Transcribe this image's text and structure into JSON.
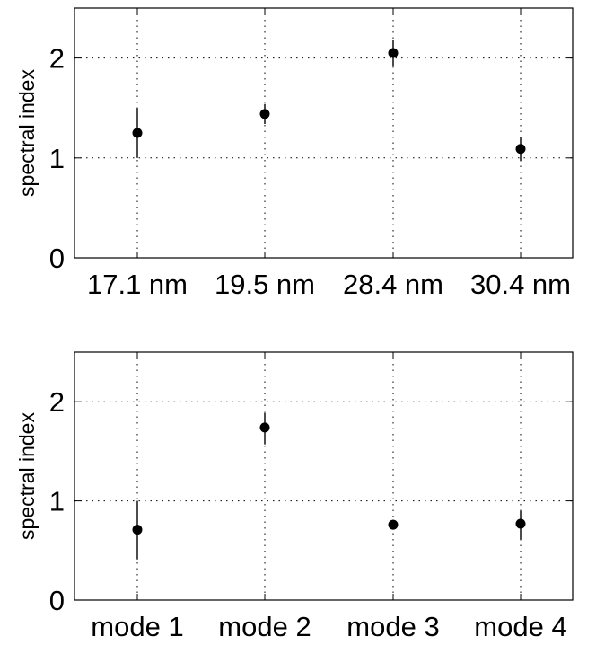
{
  "chart_data": [
    {
      "type": "scatter",
      "categories": [
        "17.1 nm",
        "19.5 nm",
        "28.4 nm",
        "30.4 nm"
      ],
      "values": [
        1.25,
        1.44,
        2.05,
        1.09
      ],
      "error_low": [
        1.0,
        1.34,
        1.92,
        0.97
      ],
      "error_high": [
        1.5,
        1.54,
        2.18,
        1.21
      ],
      "title": "",
      "xlabel": "",
      "ylabel": "spectral index",
      "ylim": [
        0,
        2.5
      ],
      "yticks": [
        0,
        1,
        2
      ],
      "grid": true,
      "marker_color": "#000000"
    },
    {
      "type": "scatter",
      "categories": [
        "mode 1",
        "mode 2",
        "mode 3",
        "mode 4"
      ],
      "values": [
        0.71,
        1.74,
        0.76,
        0.77
      ],
      "error_low": [
        0.41,
        1.57,
        0.71,
        0.61
      ],
      "error_high": [
        1.0,
        1.89,
        0.81,
        0.9
      ],
      "title": "",
      "xlabel": "",
      "ylabel": "spectral index",
      "ylim": [
        0,
        2.5
      ],
      "yticks": [
        0,
        1,
        2
      ],
      "grid": true,
      "marker_color": "#000000"
    }
  ]
}
